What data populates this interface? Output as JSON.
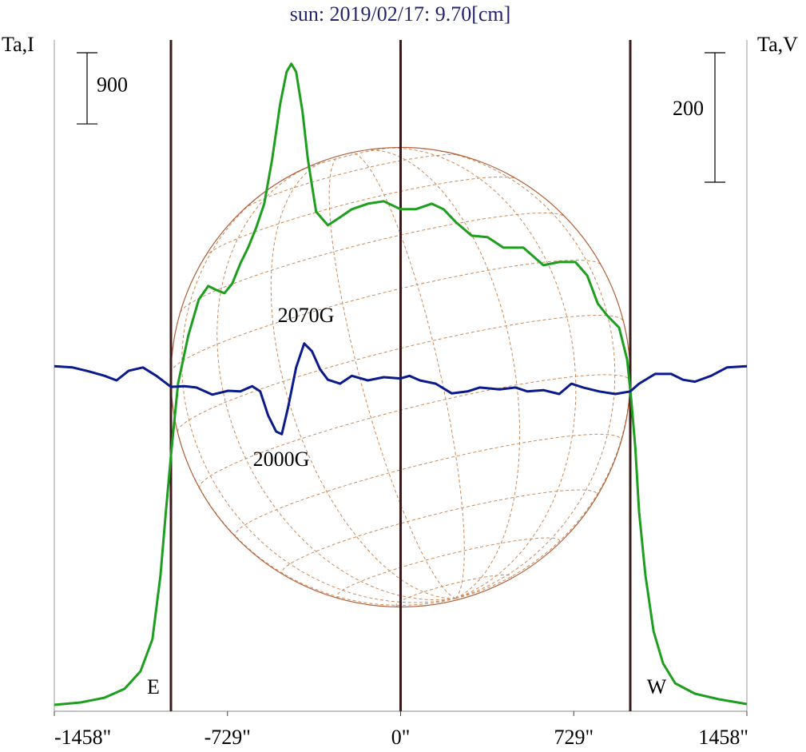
{
  "chart_data": {
    "type": "line",
    "title": "sun: 2019/02/17: 9.70[cm]",
    "ylabel": "Ta,I",
    "y2label": "Ta,V",
    "xlim": [
      -1458,
      1458
    ],
    "xticks": [
      {
        "value": -1458,
        "label": "-1458\""
      },
      {
        "value": -729,
        "label": "-729\""
      },
      {
        "value": 0,
        "label": "0\""
      },
      {
        "value": 729,
        "label": "729\""
      },
      {
        "value": 1458,
        "label": "1458\""
      }
    ],
    "ylim": [
      0,
      8440
    ],
    "y2lim": [
      -510,
      521
    ],
    "scale_bars": [
      {
        "value": 900,
        "axis": "y"
      },
      {
        "value": 200,
        "axis": "y2"
      }
    ],
    "vlines": [
      -967,
      0,
      967
    ],
    "vline_color": "#3a1a1a",
    "disk_radius": 967,
    "annotations": [
      "2070G",
      "2000G",
      "E",
      "W"
    ],
    "series": [
      {
        "color": "#1e9e1e",
        "x": [
          -1458,
          -1347,
          -1246,
          -1162,
          -1095,
          -1045,
          -1011,
          -988,
          -967,
          -937,
          -894,
          -850,
          -810,
          -776,
          -742,
          -709,
          -675,
          -642,
          -608,
          -574,
          -541,
          -507,
          -480,
          -460,
          -440,
          -413,
          -390,
          -356,
          -306,
          -255,
          -205,
          -138,
          -71,
          0,
          64,
          131,
          181,
          232,
          299,
          366,
          433,
          517,
          601,
          668,
          736,
          786,
          830,
          870,
          920,
          954,
          971,
          988,
          1004,
          1031,
          1065,
          1105,
          1156,
          1239,
          1340,
          1458
        ],
        "values": [
          30,
          61,
          121,
          233,
          455,
          859,
          1668,
          2477,
          3185,
          4095,
          4701,
          5156,
          5328,
          5277,
          5237,
          5358,
          5611,
          5813,
          6066,
          6369,
          6925,
          7633,
          8037,
          8139,
          8037,
          7532,
          6925,
          6268,
          6096,
          6197,
          6299,
          6369,
          6400,
          6299,
          6299,
          6369,
          6299,
          6137,
          5965,
          5945,
          5813,
          5813,
          5591,
          5631,
          5631,
          5459,
          5106,
          4954,
          4802,
          4398,
          3892,
          3286,
          2477,
          1668,
          960,
          556,
          303,
          172,
          101,
          40
        ]
      },
      {
        "color": "#0a1a8c",
        "axis": "y2",
        "x": [
          -1458,
          -1381,
          -1313,
          -1246,
          -1196,
          -1145,
          -1085,
          -1028,
          -967,
          -910,
          -860,
          -793,
          -726,
          -675,
          -625,
          -591,
          -558,
          -524,
          -500,
          -474,
          -440,
          -406,
          -373,
          -339,
          -306,
          -255,
          -205,
          -138,
          -71,
          0,
          37,
          81,
          148,
          215,
          282,
          333,
          417,
          484,
          534,
          601,
          668,
          719,
          769,
          836,
          904,
          967,
          1004,
          1072,
          1139,
          1189,
          1239,
          1307,
          1374,
          1458
        ],
        "values": [
          17,
          15,
          9,
          2,
          -5,
          10,
          15,
          2,
          -15,
          -14,
          -16,
          -27,
          -21,
          -22,
          -14,
          -22,
          -59,
          -84,
          -88,
          -47,
          15,
          52,
          40,
          12,
          -4,
          -10,
          2,
          -5,
          0,
          -2,
          2,
          -5,
          -10,
          -25,
          -22,
          -16,
          -19,
          -16,
          -22,
          -20,
          -26,
          -10,
          -16,
          -22,
          -26,
          -22,
          -10,
          5,
          5,
          -4,
          -7,
          2,
          15,
          17
        ]
      }
    ]
  }
}
